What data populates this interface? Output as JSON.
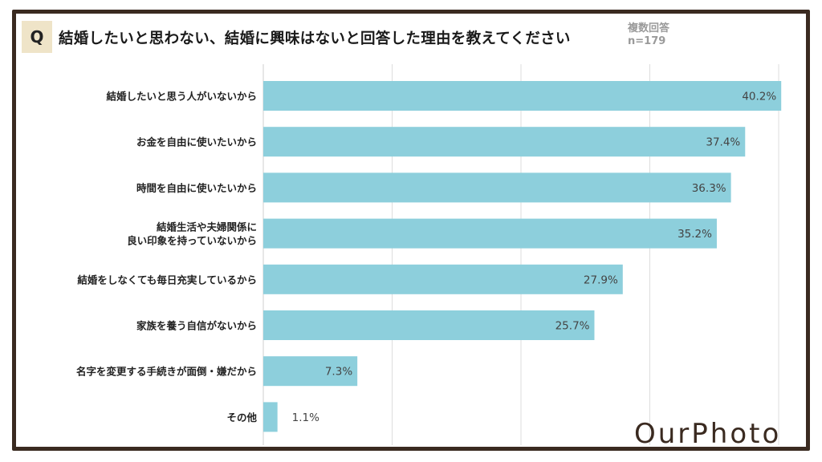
{
  "header": {
    "q_label": "Q",
    "title": "結婚したいと思わない、結婚に興味はないと回答した理由を教えてください",
    "note_line1": "複数回答",
    "note_line2": "n=179"
  },
  "logo_text": "OurPhoto",
  "colors": {
    "bar": "#8dcfdc",
    "frame": "#3a2a20",
    "grid": "#dddddd",
    "label": "#222222",
    "value": "#444444",
    "badge": "#efe4c8"
  },
  "chart_data": {
    "type": "bar",
    "orientation": "horizontal",
    "xlim": [
      0,
      40
    ],
    "grid": true,
    "categories": [
      [
        "結婚したいと思う人がいないから"
      ],
      [
        "お金を自由に使いたいから"
      ],
      [
        "時間を自由に使いたいから"
      ],
      [
        "結婚生活や夫婦関係に",
        "良い印象を持っていないから"
      ],
      [
        "結婚をしなくても毎日充実しているから"
      ],
      [
        "家族を養う自信がないから"
      ],
      [
        "名字を変更する手続きが面倒・嫌だから"
      ],
      [
        "その他"
      ]
    ],
    "values": [
      40.2,
      37.4,
      36.3,
      35.2,
      27.9,
      25.7,
      7.3,
      1.1
    ],
    "value_labels": [
      "40.2%",
      "37.4%",
      "36.3%",
      "35.2%",
      "27.9%",
      "25.7%",
      "7.3%",
      "1.1%"
    ]
  }
}
